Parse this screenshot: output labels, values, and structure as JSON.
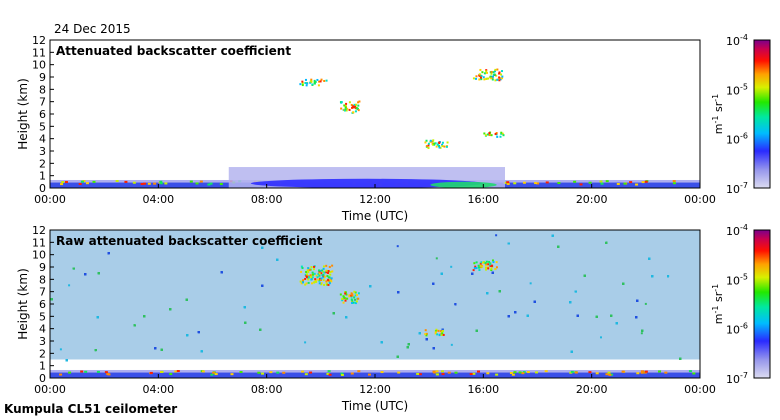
{
  "header": {
    "date": "24 Dec 2015",
    "footer_label": "Kumpula CL51 ceilometer"
  },
  "chart_data": [
    {
      "type": "heatmap",
      "title": "Attenuated backscatter coefficient",
      "xlabel": "Time (UTC)",
      "ylabel": "Height (km)",
      "x_ticks": [
        "00:00",
        "04:00",
        "08:00",
        "12:00",
        "16:00",
        "20:00",
        "00:00"
      ],
      "y_ticks": [
        "0",
        "1",
        "2",
        "3",
        "4",
        "5",
        "6",
        "7",
        "8",
        "9",
        "10",
        "11",
        "12"
      ],
      "xlim_hours": [
        0,
        24
      ],
      "ylim_km": [
        0,
        12
      ],
      "colorbar": {
        "scale": "log",
        "range": [
          1e-07,
          0.0001
        ],
        "tick_labels": [
          [
            "10",
            "-4"
          ],
          [
            "10",
            "-5"
          ],
          [
            "10",
            "-6"
          ],
          [
            "10",
            "-7"
          ]
        ],
        "unit": [
          "m",
          "-1",
          " sr",
          "-1"
        ]
      },
      "features": [
        {
          "kind": "boundary-layer-aerosol",
          "hours": [
            0,
            24
          ],
          "height_km": [
            0,
            1.0
          ]
        },
        {
          "kind": "daytime-mixed-layer",
          "hours": [
            6.6,
            16.8
          ],
          "height_km": [
            0,
            1.7
          ]
        },
        {
          "kind": "cloud",
          "hours": [
            9.2,
            10.2
          ],
          "height_km": [
            8.4,
            8.9
          ]
        },
        {
          "kind": "cloud",
          "hours": [
            10.7,
            11.4
          ],
          "height_km": [
            6.1,
            7.1
          ]
        },
        {
          "kind": "cloud",
          "hours": [
            13.8,
            14.7
          ],
          "height_km": [
            3.3,
            4.0
          ]
        },
        {
          "kind": "cloud",
          "hours": [
            15.6,
            16.7
          ],
          "height_km": [
            8.8,
            9.7
          ]
        },
        {
          "kind": "cloud",
          "hours": [
            16.0,
            16.8
          ],
          "height_km": [
            4.2,
            4.6
          ]
        }
      ]
    },
    {
      "type": "heatmap",
      "title": "Raw attenuated backscatter coefficient",
      "xlabel": "Time (UTC)",
      "ylabel": "Height (km)",
      "x_ticks": [
        "00:00",
        "04:00",
        "08:00",
        "12:00",
        "16:00",
        "20:00",
        "00:00"
      ],
      "y_ticks": [
        "0",
        "1",
        "2",
        "3",
        "4",
        "5",
        "6",
        "7",
        "8",
        "9",
        "10",
        "11",
        "12"
      ],
      "xlim_hours": [
        0,
        24
      ],
      "ylim_km": [
        0,
        12
      ],
      "colorbar": {
        "scale": "log",
        "range": [
          1e-07,
          0.0001
        ],
        "tick_labels": [
          [
            "10",
            "-4"
          ],
          [
            "10",
            "-5"
          ],
          [
            "10",
            "-6"
          ],
          [
            "10",
            "-7"
          ]
        ],
        "unit": [
          "m",
          "-1",
          " sr",
          "-1"
        ]
      },
      "features": [
        {
          "kind": "noise-background",
          "hours": [
            0,
            24
          ],
          "height_km": [
            1.5,
            12
          ]
        },
        {
          "kind": "boundary-layer-aerosol",
          "hours": [
            0,
            24
          ],
          "height_km": [
            0,
            1.0
          ]
        },
        {
          "kind": "cloud",
          "hours": [
            9.2,
            10.4
          ],
          "height_km": [
            7.6,
            9.2
          ]
        },
        {
          "kind": "cloud",
          "hours": [
            10.7,
            11.4
          ],
          "height_km": [
            6.1,
            7.1
          ]
        },
        {
          "kind": "cloud",
          "hours": [
            13.8,
            14.5
          ],
          "height_km": [
            3.5,
            4.0
          ]
        },
        {
          "kind": "cloud",
          "hours": [
            15.6,
            16.5
          ],
          "height_km": [
            8.8,
            9.7
          ]
        }
      ]
    }
  ]
}
